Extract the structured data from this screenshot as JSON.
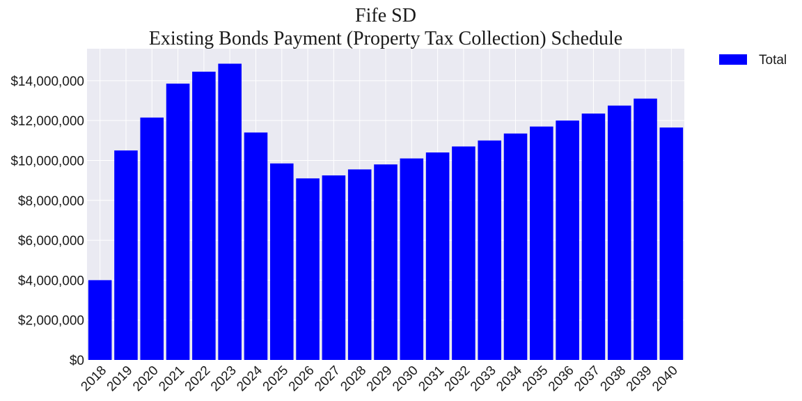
{
  "chart_data": {
    "type": "bar",
    "title": "Fife SD",
    "subtitle": "Existing Bonds Payment (Property Tax Collection) Schedule",
    "xlabel": "",
    "ylabel": "",
    "categories": [
      "2018",
      "2019",
      "2020",
      "2021",
      "2022",
      "2023",
      "2024",
      "2025",
      "2026",
      "2027",
      "2028",
      "2029",
      "2030",
      "2031",
      "2032",
      "2033",
      "2034",
      "2035",
      "2036",
      "2037",
      "2038",
      "2039",
      "2040"
    ],
    "series": [
      {
        "name": "Total",
        "color": "#0000ff",
        "values": [
          4000000,
          10500000,
          12150000,
          13850000,
          14450000,
          14850000,
          11400000,
          9850000,
          9100000,
          9250000,
          9550000,
          9800000,
          10100000,
          10400000,
          10700000,
          11000000,
          11350000,
          11700000,
          12000000,
          12350000,
          12750000,
          13100000,
          11650000
        ]
      }
    ],
    "yticks": [
      "$0",
      "$2,000,000",
      "$4,000,000",
      "$6,000,000",
      "$8,000,000",
      "$10,000,000",
      "$12,000,000",
      "$14,000,000"
    ],
    "ytick_values": [
      0,
      2000000,
      4000000,
      6000000,
      8000000,
      10000000,
      12000000,
      14000000
    ],
    "ylim": [
      0,
      15600000
    ],
    "grid": true,
    "legend_position": "outside-top-right",
    "plot_background": "#eaeaf2",
    "grid_color": "#ffffff"
  }
}
